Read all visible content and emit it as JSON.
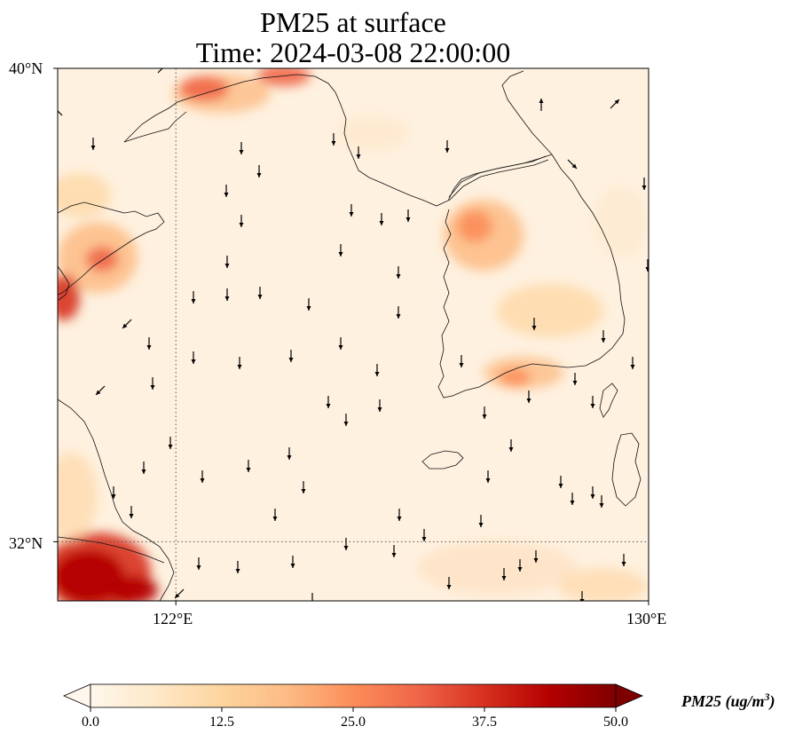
{
  "title": {
    "line1": "PM25 at surface",
    "line2": "Time: 2024-03-08 22:00:00"
  },
  "map": {
    "extent": {
      "lon_min": 120,
      "lon_max": 130,
      "lat_min": 31,
      "lat_max": 40
    },
    "lat_ticks": [
      {
        "value": 40,
        "label": "40°N"
      },
      {
        "value": 32,
        "label": "32°N"
      }
    ],
    "lon_ticks": [
      {
        "value": 122,
        "label": "122°E"
      },
      {
        "value": 130,
        "label": "130°E"
      }
    ],
    "gridlines": {
      "lon": 122,
      "lat": 32,
      "style": "dotted"
    },
    "field_variable": "PM25",
    "vectors": "surface wind arrows, predominantly southward"
  },
  "colorbar": {
    "label_main": "PM25 (ug/m",
    "label_sup": "3",
    "label_end": ")",
    "min": 0.0,
    "max": 50.0,
    "extend": "both",
    "colormap": "OrRd",
    "ticks": [
      "0.0",
      "12.5",
      "25.0",
      "37.5",
      "50.0"
    ],
    "colors": [
      "#fff7ec",
      "#fee8c8",
      "#fdd49e",
      "#fdbb84",
      "#fc8d59",
      "#ef6548",
      "#d7301f",
      "#b30000",
      "#7f0000"
    ]
  }
}
